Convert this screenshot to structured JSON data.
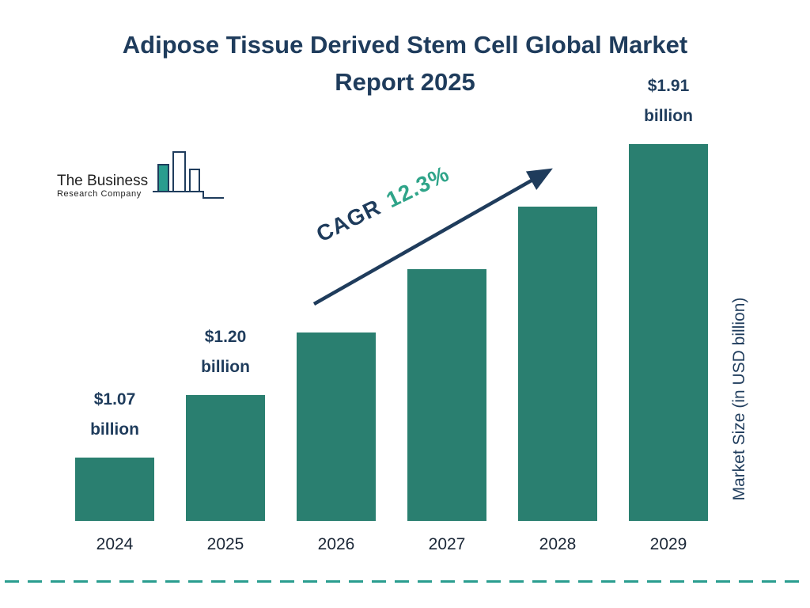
{
  "title": {
    "text": "Adipose Tissue Derived Stem Cell Global Market Report 2025"
  },
  "logo": {
    "line1": "The Business",
    "line2": "Research Company"
  },
  "annotation": {
    "cagr_label": "CAGR",
    "cagr_value": "12.3%"
  },
  "axis": {
    "ylabel": "Market Size (in USD billion)"
  },
  "chart_data": {
    "type": "bar",
    "title": "Adipose Tissue Derived Stem Cell Global Market Report 2025",
    "categories": [
      "2024",
      "2025",
      "2026",
      "2027",
      "2028",
      "2029"
    ],
    "values": [
      1.07,
      1.2,
      1.35,
      1.51,
      1.7,
      1.91
    ],
    "bar_labels": [
      "$1.07 billion",
      "$1.20 billion",
      null,
      null,
      null,
      "$1.91 billion"
    ],
    "labeled": [
      {
        "index": 0,
        "amount": "$1.07",
        "unit": "billion"
      },
      {
        "index": 1,
        "amount": "$1.20",
        "unit": "billion"
      },
      {
        "index": 5,
        "amount": "$1.91",
        "unit": "billion"
      }
    ],
    "xlabel": "",
    "ylabel": "Market Size (in USD billion)",
    "cagr": "12.3%",
    "legend": false,
    "grid": false,
    "colors": {
      "bar": "#2a7f70",
      "navy": "#1f3c5c",
      "green": "#2fa489",
      "dashed_line": "#2a9d8f"
    }
  }
}
